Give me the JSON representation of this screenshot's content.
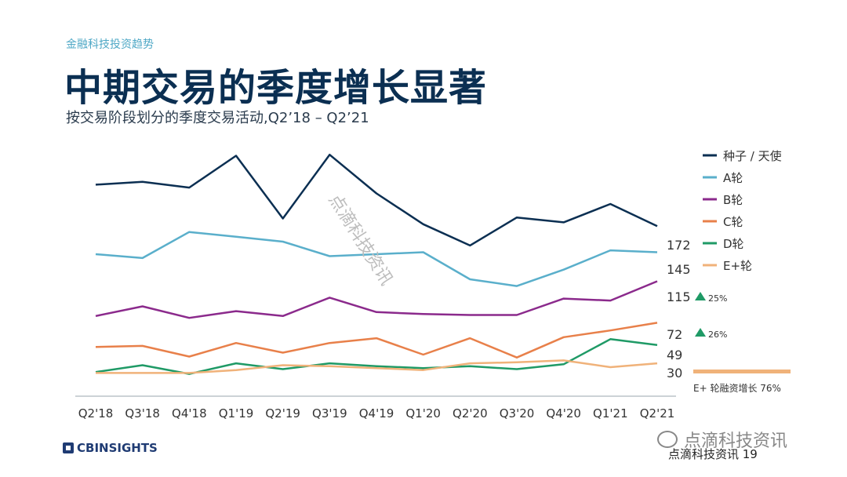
{
  "header": {
    "eyebrow": "金融科技投资趋势",
    "title": "中期交易的季度增长显著",
    "subtitle": "按交易阶段划分的季度交易活动,Q2’18 – Q2’21"
  },
  "watermark": "点滴科技资讯",
  "footer": {
    "logo": "CBINSIGHTS",
    "watermark": "点滴科技资讯",
    "page": "点滴科技资讯 19"
  },
  "chart_data": {
    "type": "line",
    "title": "",
    "xlabel": "",
    "ylabel": "",
    "grid": false,
    "legend": "top-right",
    "categories": [
      "Q2'18",
      "Q3'18",
      "Q4'18",
      "Q1'19",
      "Q2'19",
      "Q3'19",
      "Q4'19",
      "Q1'20",
      "Q2'20",
      "Q3'20",
      "Q4'20",
      "Q1'21",
      "Q2'21"
    ],
    "series": [
      {
        "name": "种子 / 天使",
        "color": "#0b2f52",
        "values": [
          215,
          218,
          212,
          245,
          180,
          246,
          206,
          174,
          152,
          181,
          176,
          195,
          172
        ],
        "end_label": "172"
      },
      {
        "name": "A轮",
        "color": "#5aafcb",
        "values": [
          143,
          139,
          166,
          161,
          156,
          141,
          143,
          145,
          117,
          110,
          127,
          147,
          145
        ],
        "end_label": "145"
      },
      {
        "name": "B轮",
        "color": "#8b2a8c",
        "values": [
          79,
          89,
          77,
          84,
          79,
          98,
          83,
          81,
          80,
          80,
          97,
          95,
          115
        ],
        "end_label": "115"
      },
      {
        "name": "C轮",
        "color": "#e8804a",
        "values": [
          47,
          48,
          37,
          51,
          41,
          51,
          56,
          39,
          56,
          36,
          57,
          64,
          72
        ],
        "end_label": "72"
      },
      {
        "name": "D轮",
        "color": "#1f9a66",
        "values": [
          21,
          28,
          19,
          30,
          24,
          30,
          27,
          25,
          27,
          24,
          29,
          55,
          49
        ],
        "end_label": "49"
      },
      {
        "name": "E+轮",
        "color": "#f0b27a",
        "values": [
          20,
          20,
          20,
          23,
          28,
          27,
          25,
          23,
          30,
          31,
          33,
          26,
          30
        ],
        "end_label": "30"
      }
    ],
    "annotations": [
      {
        "text": "25%",
        "direction": "up",
        "series": "B轮"
      },
      {
        "text": "26%",
        "direction": "up",
        "series": "C轮"
      },
      {
        "text": "E+ 轮融资增长 76%",
        "series": "E+轮"
      }
    ],
    "ylim": [
      0,
      260
    ]
  }
}
